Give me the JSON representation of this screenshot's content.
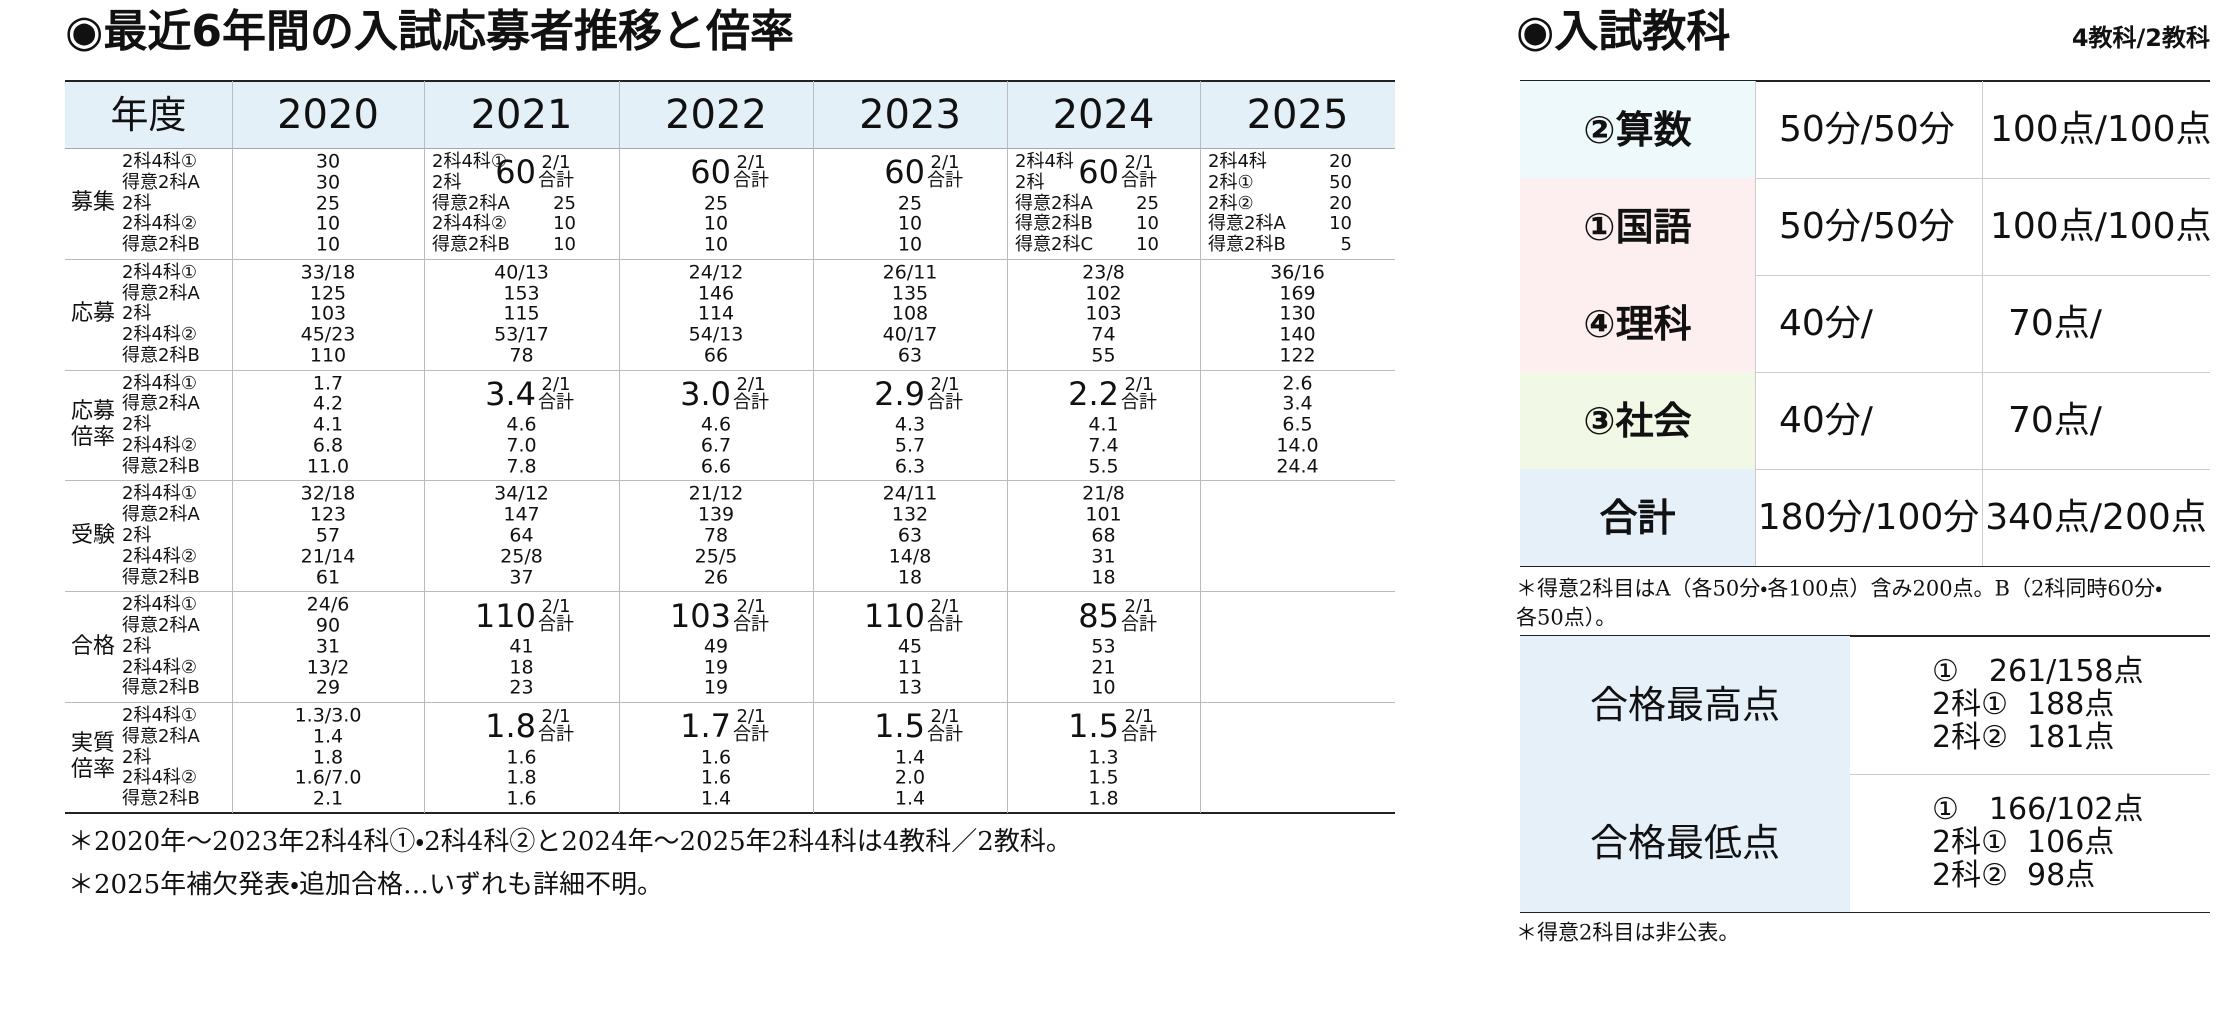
{
  "left": {
    "title": "◉最近6年間の入試応募者推移と倍率",
    "table": {
      "corner": "年度",
      "years": [
        "2020",
        "2021",
        "2022",
        "2023",
        "2024",
        "2025"
      ],
      "sub_labels": [
        "2科4科①",
        "得意2科A",
        "2科",
        "2科4科②",
        "得意2科B"
      ],
      "groups": [
        {
          "label": [
            "募集"
          ],
          "cells": [
            {
              "lines": [
                "30",
                "30",
                "25",
                "10",
                "10"
              ]
            },
            {
              "total": {
                "value": "60",
                "note": [
                  "2/1",
                  "合計"
                ]
              },
              "lines": [
                [
                  "2科4科①"
                ],
                [
                  "2科"
                ],
                [
                  "得意2科A",
                  "25"
                ],
                [
                  "2科4科②",
                  "10"
                ],
                [
                  "得意2科B",
                  "10"
                ]
              ]
            },
            {
              "total": {
                "value": "60",
                "note": [
                  "2/1",
                  "合計"
                ]
              },
              "lines": [
                null,
                null,
                "25",
                "10",
                "10"
              ]
            },
            {
              "total": {
                "value": "60",
                "note": [
                  "2/1",
                  "合計"
                ]
              },
              "lines": [
                null,
                null,
                "25",
                "10",
                "10"
              ]
            },
            {
              "total": {
                "value": "60",
                "note": [
                  "2/1",
                  "合計"
                ]
              },
              "lines": [
                [
                  "2科4科"
                ],
                [
                  "2科"
                ],
                [
                  "得意2科A",
                  "25"
                ],
                [
                  "得意2科B",
                  "10"
                ],
                [
                  "得意2科C",
                  "10"
                ]
              ]
            },
            {
              "lines": [
                [
                  "2科4科",
                  "20"
                ],
                [
                  "2科①",
                  "50"
                ],
                [
                  "2科②",
                  "20"
                ],
                [
                  "得意2科A",
                  "10"
                ],
                [
                  "得意2科B",
                  "5"
                ]
              ]
            }
          ]
        },
        {
          "label": [
            "応募"
          ],
          "cells": [
            {
              "lines": [
                "33/18",
                "125",
                "103",
                "45/23",
                "110"
              ]
            },
            {
              "lines": [
                "40/13",
                "153",
                "115",
                "53/17",
                "78"
              ]
            },
            {
              "lines": [
                "24/12",
                "146",
                "114",
                "54/13",
                "66"
              ]
            },
            {
              "lines": [
                "26/11",
                "135",
                "108",
                "40/17",
                "63"
              ]
            },
            {
              "lines": [
                "23/8",
                "102",
                "103",
                "74",
                "55"
              ]
            },
            {
              "lines": [
                "36/16",
                "169",
                "130",
                "140",
                "122"
              ]
            }
          ]
        },
        {
          "label": [
            "応募",
            "倍率"
          ],
          "cells": [
            {
              "lines": [
                "1.7",
                "4.2",
                "4.1",
                "6.8",
                "11.0"
              ]
            },
            {
              "total": {
                "value": "3.4",
                "note": [
                  "2/1",
                  "合計"
                ]
              },
              "lines": [
                null,
                null,
                "4.6",
                "7.0",
                "7.8"
              ]
            },
            {
              "total": {
                "value": "3.0",
                "note": [
                  "2/1",
                  "合計"
                ]
              },
              "lines": [
                null,
                null,
                "4.6",
                "6.7",
                "6.6"
              ]
            },
            {
              "total": {
                "value": "2.9",
                "note": [
                  "2/1",
                  "合計"
                ]
              },
              "lines": [
                null,
                null,
                "4.3",
                "5.7",
                "6.3"
              ]
            },
            {
              "total": {
                "value": "2.2",
                "note": [
                  "2/1",
                  "合計"
                ]
              },
              "lines": [
                null,
                null,
                "4.1",
                "7.4",
                "5.5"
              ]
            },
            {
              "lines": [
                "2.6",
                "3.4",
                "6.5",
                "14.0",
                "24.4"
              ]
            }
          ]
        },
        {
          "label": [
            "受験"
          ],
          "cells": [
            {
              "lines": [
                "32/18",
                "123",
                "57",
                "21/14",
                "61"
              ]
            },
            {
              "lines": [
                "34/12",
                "147",
                "64",
                "25/8",
                "37"
              ]
            },
            {
              "lines": [
                "21/12",
                "139",
                "78",
                "25/5",
                "26"
              ]
            },
            {
              "lines": [
                "24/11",
                "132",
                "63",
                "14/8",
                "18"
              ]
            },
            {
              "lines": [
                "21/8",
                "101",
                "68",
                "31",
                "18"
              ]
            },
            null
          ]
        },
        {
          "label": [
            "合格"
          ],
          "cells": [
            {
              "lines": [
                "24/6",
                "90",
                "31",
                "13/2",
                "29"
              ]
            },
            {
              "total": {
                "value": "110",
                "note": [
                  "2/1",
                  "合計"
                ]
              },
              "lines": [
                null,
                null,
                "41",
                "18",
                "23"
              ]
            },
            {
              "total": {
                "value": "103",
                "note": [
                  "2/1",
                  "合計"
                ]
              },
              "lines": [
                null,
                null,
                "49",
                "19",
                "19"
              ]
            },
            {
              "total": {
                "value": "110",
                "note": [
                  "2/1",
                  "合計"
                ]
              },
              "lines": [
                null,
                null,
                "45",
                "11",
                "13"
              ]
            },
            {
              "total": {
                "value": "85",
                "note": [
                  "2/1",
                  "合計"
                ]
              },
              "lines": [
                null,
                null,
                "53",
                "21",
                "10"
              ]
            },
            null
          ]
        },
        {
          "label": [
            "実質",
            "倍率"
          ],
          "cells": [
            {
              "lines": [
                "1.3/3.0",
                "1.4",
                "1.8",
                "1.6/7.0",
                "2.1"
              ]
            },
            {
              "total": {
                "value": "1.8",
                "note": [
                  "2/1",
                  "合計"
                ]
              },
              "lines": [
                null,
                null,
                "1.6",
                "1.8",
                "1.6"
              ]
            },
            {
              "total": {
                "value": "1.7",
                "note": [
                  "2/1",
                  "合計"
                ]
              },
              "lines": [
                null,
                null,
                "1.6",
                "1.6",
                "1.4"
              ]
            },
            {
              "total": {
                "value": "1.5",
                "note": [
                  "2/1",
                  "合計"
                ]
              },
              "lines": [
                null,
                null,
                "1.4",
                "2.0",
                "1.4"
              ]
            },
            {
              "total": {
                "value": "1.5",
                "note": [
                  "2/1",
                  "合計"
                ]
              },
              "lines": [
                null,
                null,
                "1.3",
                "1.5",
                "1.8"
              ]
            },
            null
          ]
        }
      ]
    },
    "notes": [
      "＊2020年～2023年2科4科①・2科4科②と2024年～2025年2科4科は4教科／2教科。",
      "＊2025年補欠発表・追加合格…いずれも詳細不明。"
    ]
  },
  "right": {
    "title": "◉入試教科",
    "subtitle": "4教科/2教科",
    "subjects": [
      [
        "②算数",
        "50分/50分",
        "100点/100点"
      ],
      [
        "①国語",
        "50分/50分",
        "100点/100点"
      ],
      [
        "④理科",
        "40分/",
        "70点/"
      ],
      [
        "③社会",
        "40分/",
        "70点/"
      ],
      [
        "合計",
        "180分/100分",
        "340点/200点"
      ]
    ],
    "subject_note": [
      "＊得意2科目はA（各50分・各100点）含み200点。B（2科同時60分・",
      "各50点）。"
    ],
    "scores": [
      {
        "label": "合格最高点",
        "lines": [
          "①　261/158点",
          "2科①  188点",
          "2科②  181点"
        ]
      },
      {
        "label": "合格最低点",
        "lines": [
          "①　166/102点",
          "2科①  106点",
          "2科②  98点"
        ]
      }
    ],
    "score_note": "＊得意2科目は非公表。"
  }
}
